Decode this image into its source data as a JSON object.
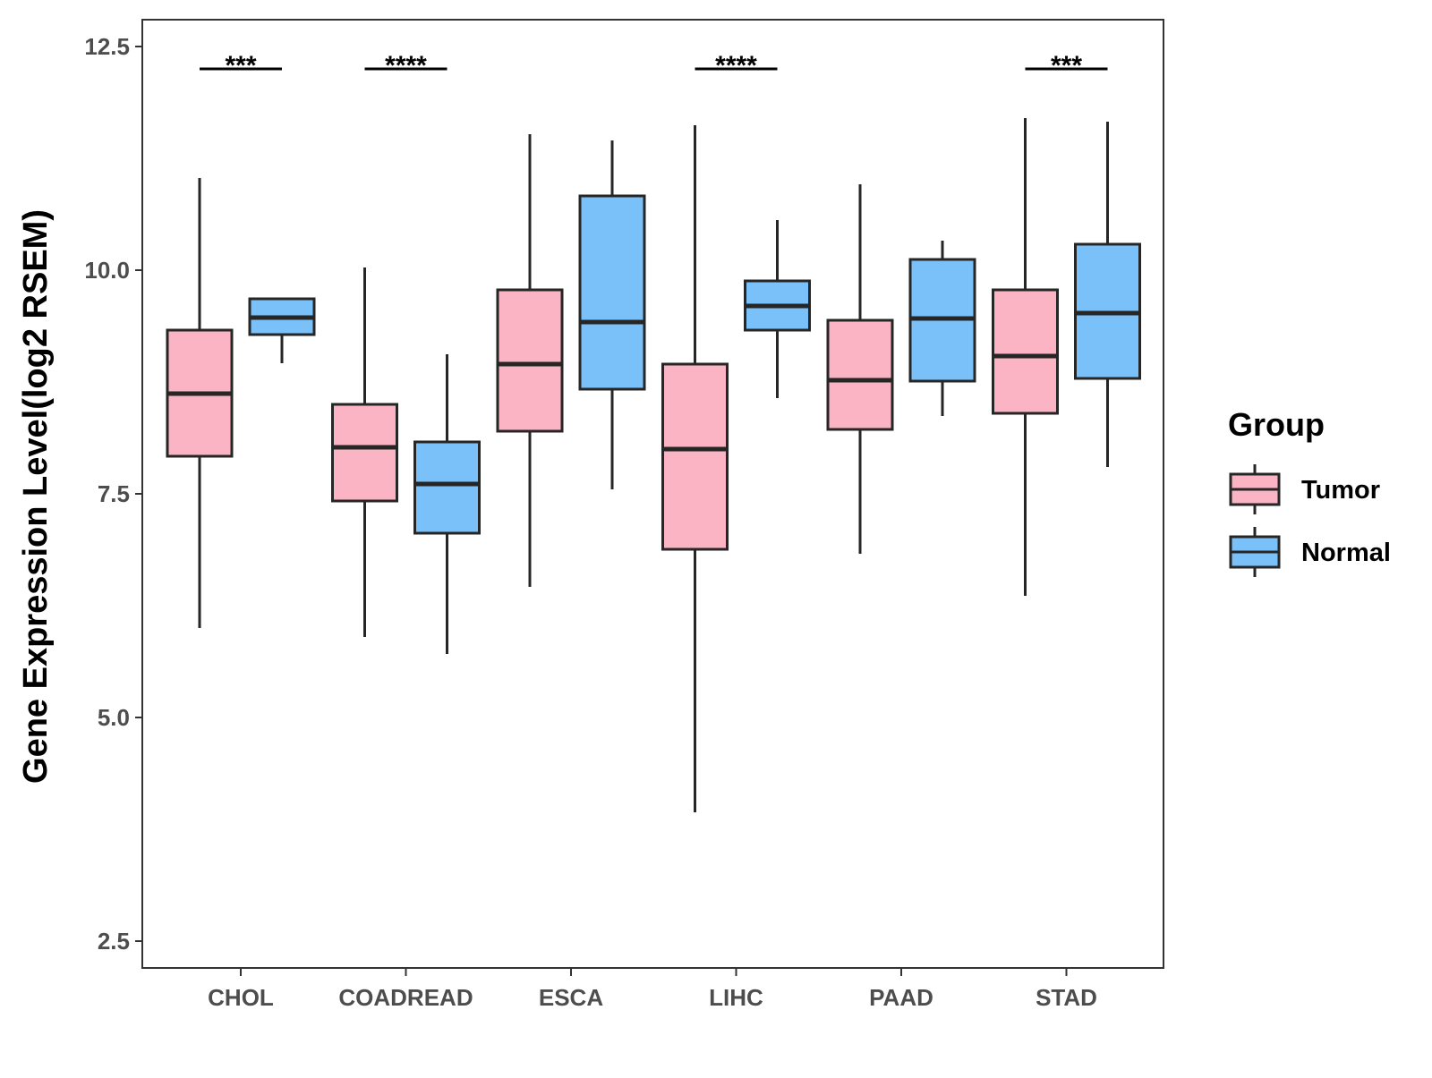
{
  "chart_data": {
    "type": "boxplot",
    "ylabel": "Gene Expression Level(log2 RSEM)",
    "xlabel": "",
    "ylim": [
      2.2,
      12.8
    ],
    "yticks": [
      2.5,
      5.0,
      7.5,
      10.0,
      12.5
    ],
    "ytick_labels": [
      "2.5",
      "5.0",
      "7.5",
      "10.0",
      "12.5"
    ],
    "categories": [
      "CHOL",
      "COADREAD",
      "ESCA",
      "LIHC",
      "PAAD",
      "STAD"
    ],
    "legend": {
      "title": "Group",
      "position": "right",
      "entries": [
        {
          "name": "Tumor",
          "color": "#fbb4c4"
        },
        {
          "name": "Normal",
          "color": "#7ac1f9"
        }
      ]
    },
    "series": [
      {
        "name": "Tumor",
        "color": "#fbb4c4",
        "boxes": [
          {
            "category": "CHOL",
            "min": 6.0,
            "q1": 7.92,
            "median": 8.62,
            "q3": 9.33,
            "max": 11.03
          },
          {
            "category": "COADREAD",
            "min": 5.9,
            "q1": 7.42,
            "median": 8.02,
            "q3": 8.5,
            "max": 10.03
          },
          {
            "category": "ESCA",
            "min": 6.46,
            "q1": 8.2,
            "median": 8.95,
            "q3": 9.78,
            "max": 11.52
          },
          {
            "category": "LIHC",
            "min": 3.94,
            "q1": 6.88,
            "median": 8.0,
            "q3": 8.95,
            "max": 11.62
          },
          {
            "category": "PAAD",
            "min": 6.83,
            "q1": 8.22,
            "median": 8.77,
            "q3": 9.44,
            "max": 10.96
          },
          {
            "category": "STAD",
            "min": 6.36,
            "q1": 8.4,
            "median": 9.04,
            "q3": 9.78,
            "max": 11.7
          }
        ]
      },
      {
        "name": "Normal",
        "color": "#7ac1f9",
        "boxes": [
          {
            "category": "CHOL",
            "min": 8.96,
            "q1": 9.28,
            "median": 9.47,
            "q3": 9.68,
            "max": 9.68
          },
          {
            "category": "COADREAD",
            "min": 5.71,
            "q1": 7.06,
            "median": 7.61,
            "q3": 8.08,
            "max": 9.06
          },
          {
            "category": "ESCA",
            "min": 7.55,
            "q1": 8.67,
            "median": 9.42,
            "q3": 10.83,
            "max": 11.45
          },
          {
            "category": "LIHC",
            "min": 8.57,
            "q1": 9.33,
            "median": 9.6,
            "q3": 9.88,
            "max": 10.56
          },
          {
            "category": "PAAD",
            "min": 8.37,
            "q1": 8.76,
            "median": 9.46,
            "q3": 10.12,
            "max": 10.33
          },
          {
            "category": "STAD",
            "min": 7.8,
            "q1": 8.79,
            "median": 9.52,
            "q3": 10.29,
            "max": 11.66
          }
        ]
      }
    ],
    "significance": [
      {
        "category": "CHOL",
        "label": "***"
      },
      {
        "category": "COADREAD",
        "label": "****"
      },
      {
        "category": "LIHC",
        "label": "****"
      },
      {
        "category": "STAD",
        "label": "***"
      }
    ],
    "significance_y": 12.25
  }
}
